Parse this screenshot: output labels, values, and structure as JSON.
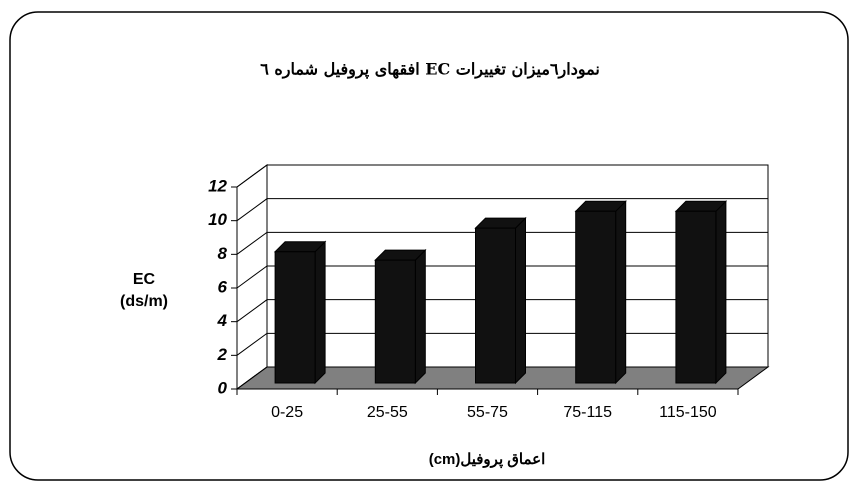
{
  "chart_data": {
    "type": "bar3d",
    "title": "نمودار٦میزان تغییرات EC افقهای پروفیل شماره ٦",
    "ylabel": [
      "EC",
      "(ds/m)"
    ],
    "xlabel": "اعماق پروفیل(cm)",
    "categories": [
      "0-25",
      "25-55",
      "55-75",
      "75-115",
      "115-150"
    ],
    "values": [
      7.8,
      7.3,
      9.2,
      10.2,
      10.2
    ],
    "color": "#111111",
    "ylim": [
      0,
      12
    ],
    "yticks": [
      0,
      2,
      4,
      6,
      8,
      10,
      12
    ],
    "grid": true
  }
}
